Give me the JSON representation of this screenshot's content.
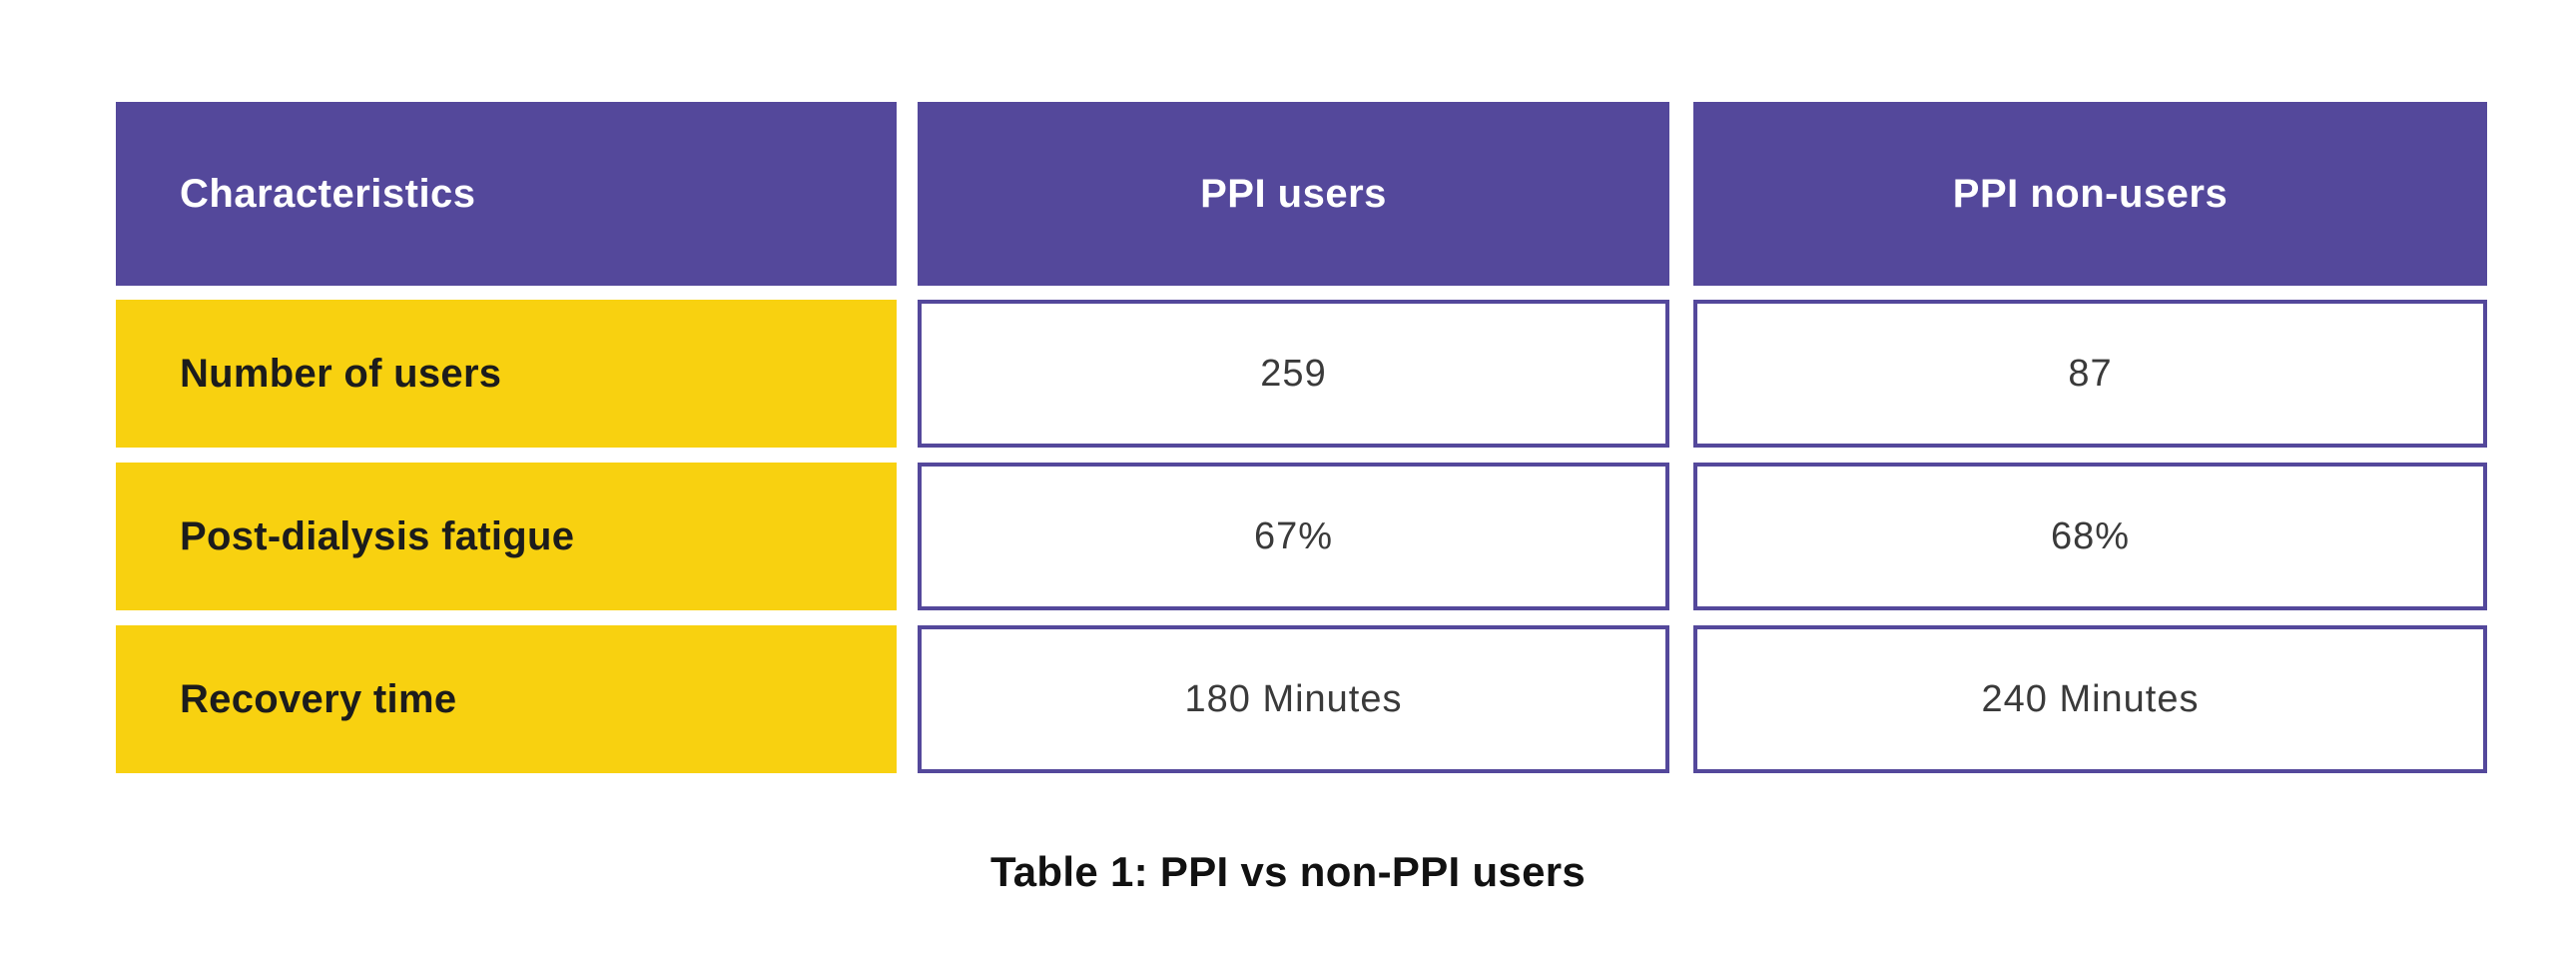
{
  "chart_data": {
    "type": "table",
    "title": "Table 1: PPI vs non-PPI users",
    "caption": "Table 1: PPI vs non-PPI users",
    "columns": [
      "Characteristics",
      "PPI users",
      "PPI non-users"
    ],
    "rows": [
      [
        "Number of users",
        "259",
        "87"
      ],
      [
        "Post-dialysis fatigue",
        "67%",
        "68%"
      ],
      [
        "Recovery time",
        "180 Minutes",
        "240 Minutes"
      ]
    ],
    "layout": {
      "header_row": true,
      "label_column": true,
      "grid": "separated-blocks"
    }
  },
  "colors": {
    "page_bg": "#FFFFFF",
    "header_bg": "#54489B",
    "header_text": "#FFFFFF",
    "label_bg": "#F8D110",
    "label_text": "#1C1C1C",
    "cell_bg": "#FFFFFF",
    "cell_border": "#54489B",
    "cell_text": "#3A3A3A",
    "caption_text": "#111111"
  }
}
